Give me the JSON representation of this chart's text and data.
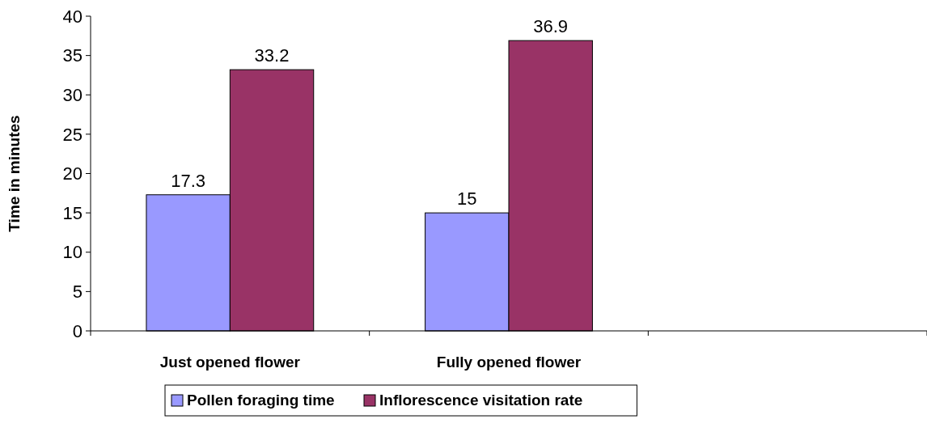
{
  "chart_data": {
    "type": "bar",
    "ylabel": "Time in minutes",
    "categories": [
      "Just opened flower",
      "Fully opened flower",
      null
    ],
    "series": [
      {
        "name": "Pollen foraging time",
        "color": "#9999ff",
        "values": [
          17.3,
          15,
          null
        ]
      },
      {
        "name": "Inflorescence visitation rate",
        "color": "#993366",
        "values": [
          33.2,
          36.9,
          null
        ]
      }
    ],
    "ylim": [
      0,
      40
    ],
    "yticks": [
      0,
      5,
      10,
      15,
      20,
      25,
      30,
      35,
      40
    ],
    "data_labels": true,
    "grid": false,
    "legend": "bottom"
  }
}
